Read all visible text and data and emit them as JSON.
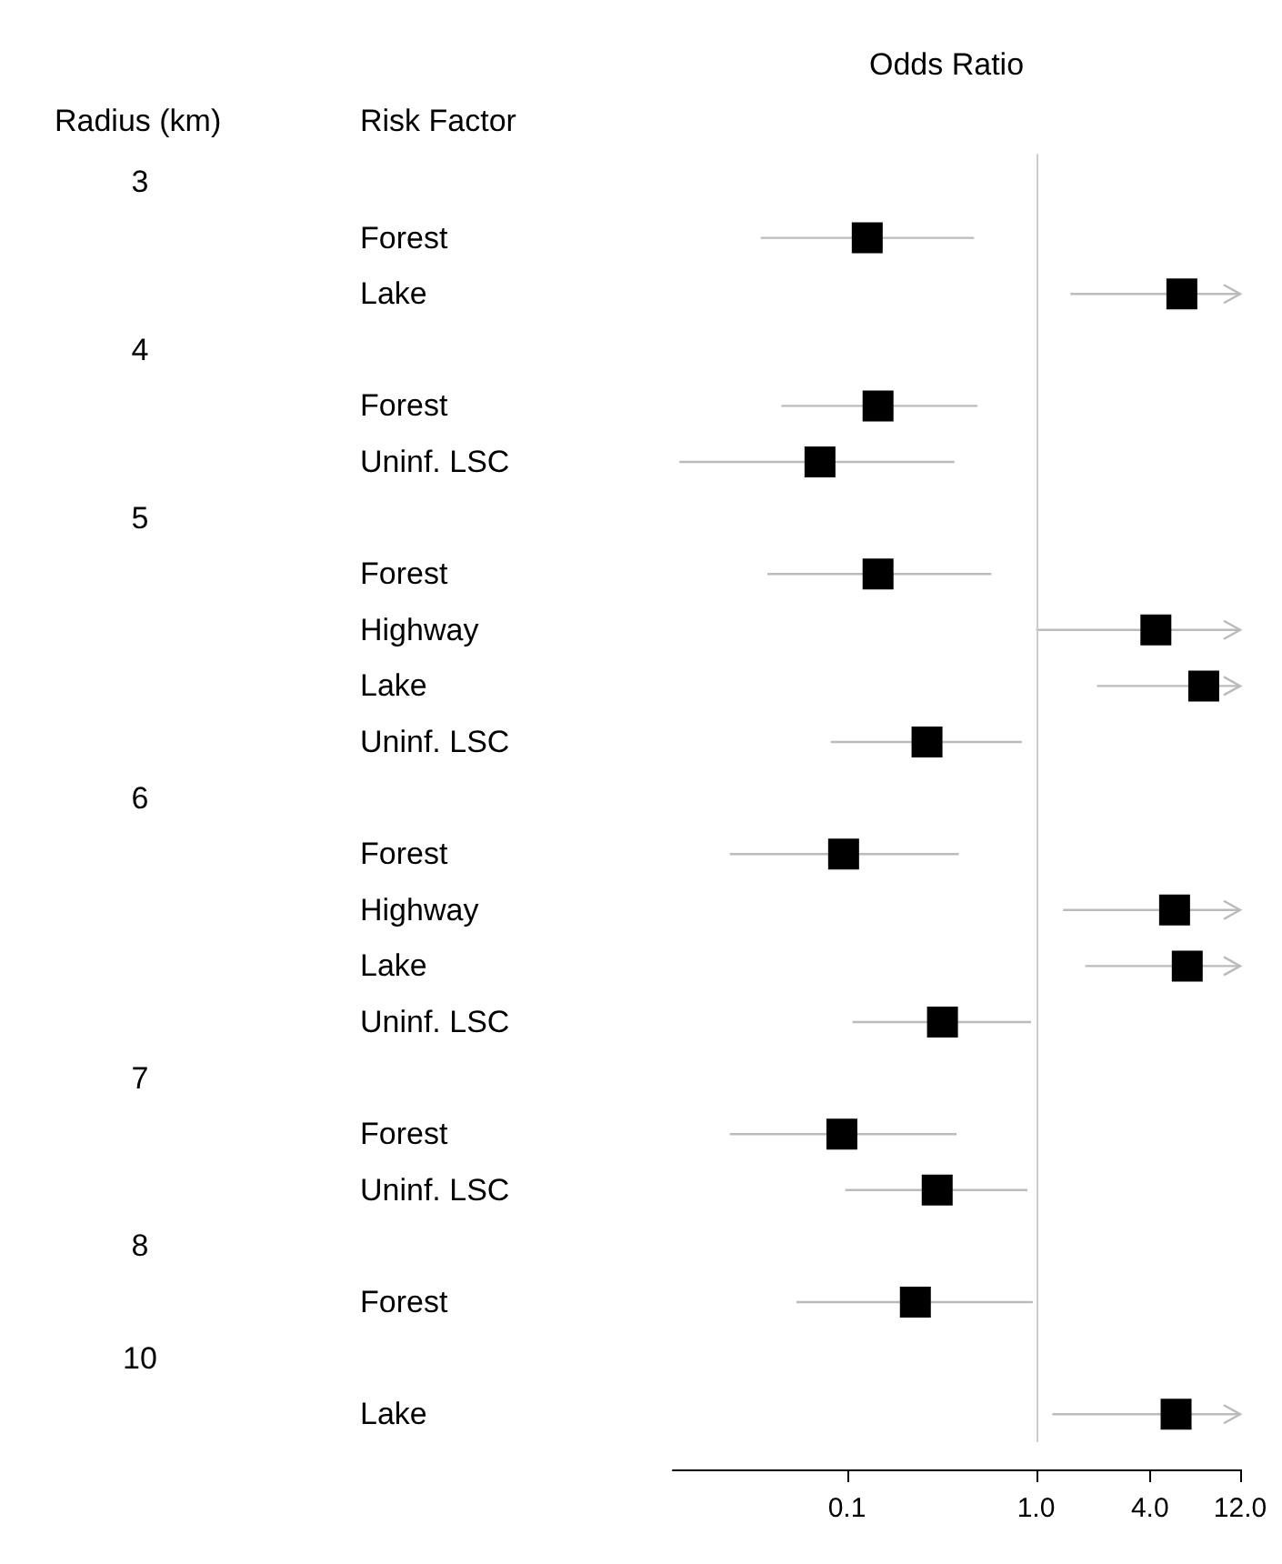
{
  "chart_data": {
    "type": "scatter",
    "orientation": "horizontal",
    "xlabel": "Odds Ratio",
    "annotations": [
      "Radius (km)",
      "Risk Factor",
      "3",
      "4",
      "5",
      "6",
      "7",
      "8",
      "10"
    ],
    "categories": [
      null,
      "Forest",
      "Lake",
      null,
      "Forest",
      "Uninf. LSC",
      null,
      "Forest",
      "Highway",
      "Lake",
      "Uninf. LSC",
      null,
      "Forest",
      "Highway",
      "Lake",
      "Uninf. LSC",
      null,
      "Forest",
      "Uninf. LSC",
      null,
      "Forest",
      null,
      "Lake"
    ],
    "series": [
      {
        "color": "#000000",
        "values": [
          null,
          0.128,
          5.9,
          null,
          0.146,
          0.072,
          null,
          0.146,
          4.3,
          7.7,
          0.265,
          null,
          0.096,
          5.4,
          6.3,
          0.32,
          null,
          0.094,
          0.3,
          null,
          0.23,
          null,
          5.5
        ],
        "errors": [
          null,
          [
            0.035,
            0.47
          ],
          [
            1.52,
            12
          ],
          null,
          [
            0.045,
            0.49
          ],
          [
            0.013,
            0.37
          ],
          null,
          [
            0.038,
            0.58
          ],
          [
            1.0,
            12
          ],
          [
            2.1,
            12
          ],
          [
            0.082,
            0.84
          ],
          null,
          [
            0.024,
            0.39
          ],
          [
            1.39,
            12
          ],
          [
            1.82,
            12
          ],
          [
            0.107,
            0.94
          ],
          null,
          [
            0.024,
            0.38
          ],
          [
            0.098,
            0.9
          ],
          null,
          [
            0.054,
            0.96
          ],
          null,
          [
            1.22,
            12
          ]
        ]
      }
    ],
    "xlim": [
      0.012,
      12
    ],
    "xticks": [
      0.1,
      {
        "value": 1,
        "label": "1.0"
      },
      {
        "value": 4,
        "label": "4.0"
      },
      {
        "value": 12,
        "label": "12.0"
      }
    ],
    "log": "x",
    "marker": "square",
    "grid": false,
    "legend": false,
    "ref_lines": [
      {
        "axis": "x",
        "value": 1,
        "color": "#cccccc"
      }
    ]
  }
}
